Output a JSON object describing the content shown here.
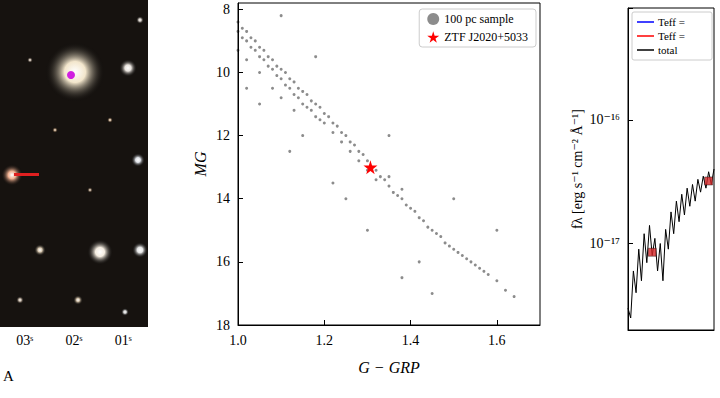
{
  "chart_data": [
    {
      "type": "image",
      "categories": [
        "03ˢ",
        "02ˢ",
        "01ˢ"
      ],
      "xlabel": "A",
      "tick_labels": "x"
    },
    {
      "type": "scatter",
      "xlabel": "G − GRP",
      "ylabel": "MG",
      "xlim": [
        1.0,
        1.7
      ],
      "xticks": [
        {
          "value": 1.0,
          "label": "1.0"
        },
        1.2,
        1.4,
        1.6
      ],
      "ylim": [
        18,
        7.8
      ],
      "yticks": [
        8,
        10,
        12,
        14,
        16,
        18
      ],
      "legend": "upper right",
      "series": [
        {
          "name": "100 pc sample",
          "color": "#000000",
          "marker": "circle",
          "x": [
            1.0,
            1.0,
            1.01,
            1.01,
            1.02,
            1.02,
            1.03,
            1.03,
            1.04,
            1.04,
            1.05,
            1.05,
            1.06,
            1.06,
            1.07,
            1.07,
            1.08,
            1.08,
            1.09,
            1.09,
            1.1,
            1.1,
            1.11,
            1.11,
            1.12,
            1.12,
            1.13,
            1.13,
            1.14,
            1.14,
            1.15,
            1.15,
            1.16,
            1.16,
            1.17,
            1.17,
            1.18,
            1.18,
            1.19,
            1.19,
            1.2,
            1.2,
            1.21,
            1.22,
            1.22,
            1.23,
            1.24,
            1.24,
            1.25,
            1.26,
            1.26,
            1.27,
            1.28,
            1.28,
            1.29,
            1.3,
            1.3,
            1.31,
            1.32,
            1.32,
            1.33,
            1.34,
            1.35,
            1.35,
            1.36,
            1.37,
            1.38,
            1.38,
            1.39,
            1.4,
            1.41,
            1.42,
            1.43,
            1.44,
            1.45,
            1.46,
            1.47,
            1.48,
            1.49,
            1.5,
            1.51,
            1.52,
            1.53,
            1.54,
            1.55,
            1.56,
            1.57,
            1.58,
            1.6,
            1.05,
            1.12,
            1.18,
            1.25,
            1.35,
            1.42,
            1.1,
            1.3,
            1.5,
            1.02,
            1.45,
            1.22,
            1.6,
            1.38,
            1.15,
            1.0,
            1.02,
            1.05,
            1.08,
            1.1,
            1.13,
            1.62,
            1.64
          ],
          "values": [
            8.4,
            8.7,
            8.6,
            8.9,
            8.7,
            9.0,
            8.9,
            9.2,
            9.0,
            9.3,
            9.2,
            9.5,
            9.3,
            9.6,
            9.5,
            9.8,
            9.6,
            9.9,
            9.8,
            10.1,
            9.9,
            10.2,
            10.0,
            10.4,
            10.2,
            10.5,
            10.3,
            10.7,
            10.5,
            10.8,
            10.6,
            11.0,
            10.7,
            11.1,
            10.9,
            11.2,
            11.0,
            11.4,
            11.1,
            11.5,
            11.3,
            11.6,
            11.4,
            11.6,
            11.9,
            11.7,
            11.9,
            12.2,
            12.0,
            12.2,
            12.5,
            12.3,
            12.5,
            12.8,
            12.6,
            12.8,
            13.1,
            13.0,
            13.1,
            13.4,
            13.3,
            13.4,
            13.6,
            13.3,
            13.8,
            13.9,
            14.0,
            13.7,
            14.2,
            14.3,
            14.4,
            14.6,
            14.7,
            14.9,
            15.0,
            15.1,
            15.2,
            15.4,
            15.5,
            15.6,
            15.7,
            15.8,
            15.9,
            16.0,
            16.1,
            16.2,
            16.3,
            16.4,
            16.6,
            11.0,
            12.5,
            9.5,
            14.0,
            12.0,
            16.0,
            8.2,
            15.0,
            14.0,
            10.5,
            17.0,
            13.5,
            15.0,
            16.5,
            12.0,
            9.3,
            9.6,
            10.0,
            10.5,
            10.8,
            11.2,
            16.9,
            17.1
          ]
        },
        {
          "name": "ZTF J2020+5033",
          "color": "#ff0000",
          "marker": "star",
          "x": [
            1.307
          ],
          "values": [
            13.0
          ]
        }
      ]
    },
    {
      "type": "line",
      "ylabel": "fλ [erg s⁻¹ cm⁻² Å⁻¹]",
      "log": "y",
      "tick_labels": "y",
      "xlim": [
        4000,
        5600
      ],
      "xticks": [],
      "ylim": [
        2e-18,
        8e-16
      ],
      "yticks": [
        {
          "value": 1e-17,
          "label": "10⁻¹⁷"
        },
        {
          "value": 1e-16,
          "label": "10⁻¹⁶"
        }
      ],
      "x": [
        4000,
        4050,
        4100,
        4150,
        4200,
        4250,
        4300,
        4350,
        4400,
        4450,
        4500,
        4550,
        4600,
        4650,
        4700,
        4750,
        4800,
        4850,
        4900,
        4950,
        5000,
        5050,
        5100,
        5150,
        5200,
        5250,
        5300,
        5350,
        5400,
        5450,
        5500,
        5550,
        5600
      ],
      "series": [
        {
          "name": "Teff =",
          "color": "#0000ff",
          "type": "line",
          "values": [
            null,
            null,
            null,
            null,
            null,
            null,
            null,
            null,
            null,
            null,
            null,
            null,
            null,
            null,
            null,
            null,
            null,
            null,
            null,
            null,
            null,
            null,
            null,
            null,
            null,
            null,
            null,
            null,
            null,
            null,
            null,
            null,
            null
          ]
        },
        {
          "name": "Teff =",
          "color": "#ff0000",
          "type": "line",
          "values": [
            null,
            null,
            null,
            null,
            null,
            null,
            null,
            null,
            null,
            null,
            null,
            null,
            null,
            null,
            null,
            null,
            null,
            null,
            null,
            null,
            null,
            null,
            null,
            null,
            null,
            null,
            null,
            null,
            null,
            null,
            null,
            null,
            null
          ]
        },
        {
          "name": "total",
          "color": "#000000",
          "type": "line",
          "values": [
            3e-18,
            2.5e-18,
            6e-18,
            4e-18,
            9e-18,
            5e-18,
            1.2e-17,
            7e-18,
            1.4e-17,
            8e-18,
            1.1e-17,
            6e-18,
            1e-17,
            5e-18,
            1.3e-17,
            9e-18,
            1.8e-17,
            1.2e-17,
            2.2e-17,
            1.5e-17,
            2.5e-17,
            1.7e-17,
            2.8e-17,
            2e-17,
            3e-17,
            2.2e-17,
            3.3e-17,
            2.6e-17,
            3.5e-17,
            2.8e-17,
            3.8e-17,
            3e-17,
            4e-17
          ]
        },
        {
          "color": "#d62728",
          "type": "scatter",
          "marker": "square",
          "x": [
            4450,
            5500
          ],
          "values": [
            8.5e-18,
            3.2e-17
          ]
        }
      ]
    }
  ]
}
